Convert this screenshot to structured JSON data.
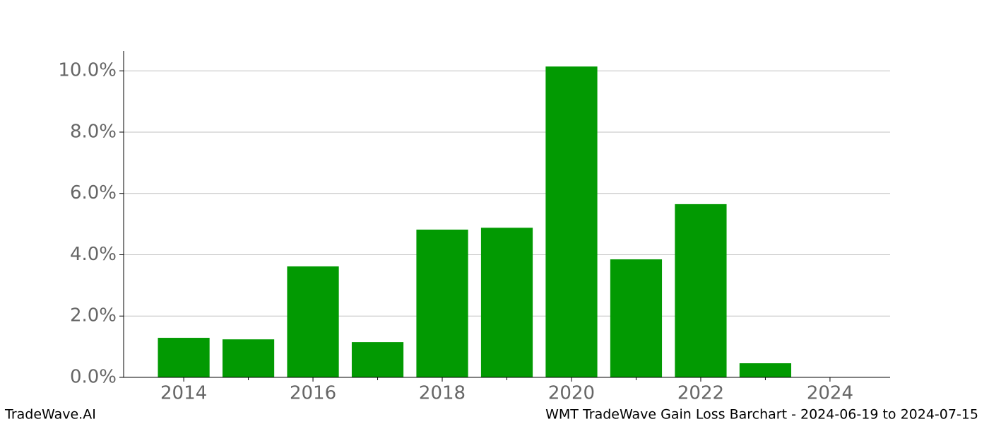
{
  "chart_data": {
    "type": "bar",
    "x": [
      2014,
      2015,
      2016,
      2017,
      2018,
      2019,
      2020,
      2021,
      2022,
      2023
    ],
    "values": [
      1.29,
      1.24,
      3.62,
      1.15,
      4.82,
      4.88,
      10.14,
      3.85,
      5.65,
      0.46
    ],
    "color": "#029a02",
    "xlim": [
      2013.07,
      2024.93
    ],
    "xticks": [
      2014,
      2016,
      2018,
      2020,
      2022,
      2024
    ],
    "xminorticks": [
      2015,
      2017,
      2019,
      2021,
      2023
    ],
    "ylim": [
      0,
      10.65
    ],
    "yticks": [
      {
        "value": 0,
        "label": "0.0%"
      },
      {
        "value": 2,
        "label": "2.0%"
      },
      {
        "value": 4,
        "label": "4.0%"
      },
      {
        "value": 6,
        "label": "6.0%"
      },
      {
        "value": 8,
        "label": "8.0%"
      },
      {
        "value": 10,
        "label": "10.0%"
      }
    ],
    "grid": true,
    "footer_left": "TradeWave.AI",
    "footer_right": "WMT TradeWave Gain Loss Barchart - 2024-06-19 to 2024-07-15"
  }
}
